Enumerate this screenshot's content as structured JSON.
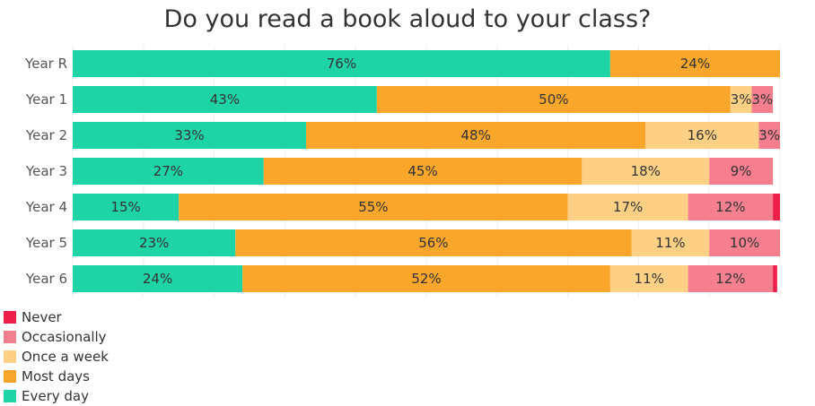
{
  "chart_data": {
    "type": "bar",
    "orientation": "horizontal",
    "stacked": true,
    "title": "Do you read a book aloud to your class?",
    "categories": [
      "Year R",
      "Year 1",
      "Year 2",
      "Year 3",
      "Year 4",
      "Year 5",
      "Year 6"
    ],
    "series": [
      {
        "name": "Every day",
        "color": "#1ed3a6",
        "values": [
          76,
          43,
          33,
          27,
          15,
          23,
          24
        ],
        "labels": [
          "76%",
          "43%",
          "33%",
          "27%",
          "15%",
          "23%",
          "24%"
        ]
      },
      {
        "name": "Most days",
        "color": "#faa62a",
        "values": [
          24,
          50,
          48,
          45,
          55,
          56,
          52
        ],
        "labels": [
          "24%",
          "50%",
          "48%",
          "45%",
          "55%",
          "56%",
          "52%"
        ]
      },
      {
        "name": "Once a week",
        "color": "#fdd085",
        "values": [
          0,
          3,
          16,
          18,
          17,
          11,
          11
        ],
        "labels": [
          "",
          "3%",
          "16%",
          "18%",
          "17%",
          "11%",
          "11%"
        ]
      },
      {
        "name": "Occasionally",
        "color": "#f57f8f",
        "values": [
          0,
          3,
          3,
          9,
          12,
          10,
          12
        ],
        "labels": [
          "",
          "3%",
          "3%",
          "9%",
          "12%",
          "10%",
          "12%"
        ]
      },
      {
        "name": "Never",
        "color": "#ec2048",
        "values": [
          0,
          0,
          0,
          0,
          1,
          0,
          0.6
        ],
        "labels": [
          "",
          "",
          "",
          "",
          "",
          "",
          ""
        ]
      }
    ],
    "xlim": [
      0,
      100
    ],
    "grid": true,
    "legend_position": "bottom-left",
    "legend_order": [
      "Never",
      "Occasionally",
      "Once a week",
      "Most days",
      "Every day"
    ]
  }
}
